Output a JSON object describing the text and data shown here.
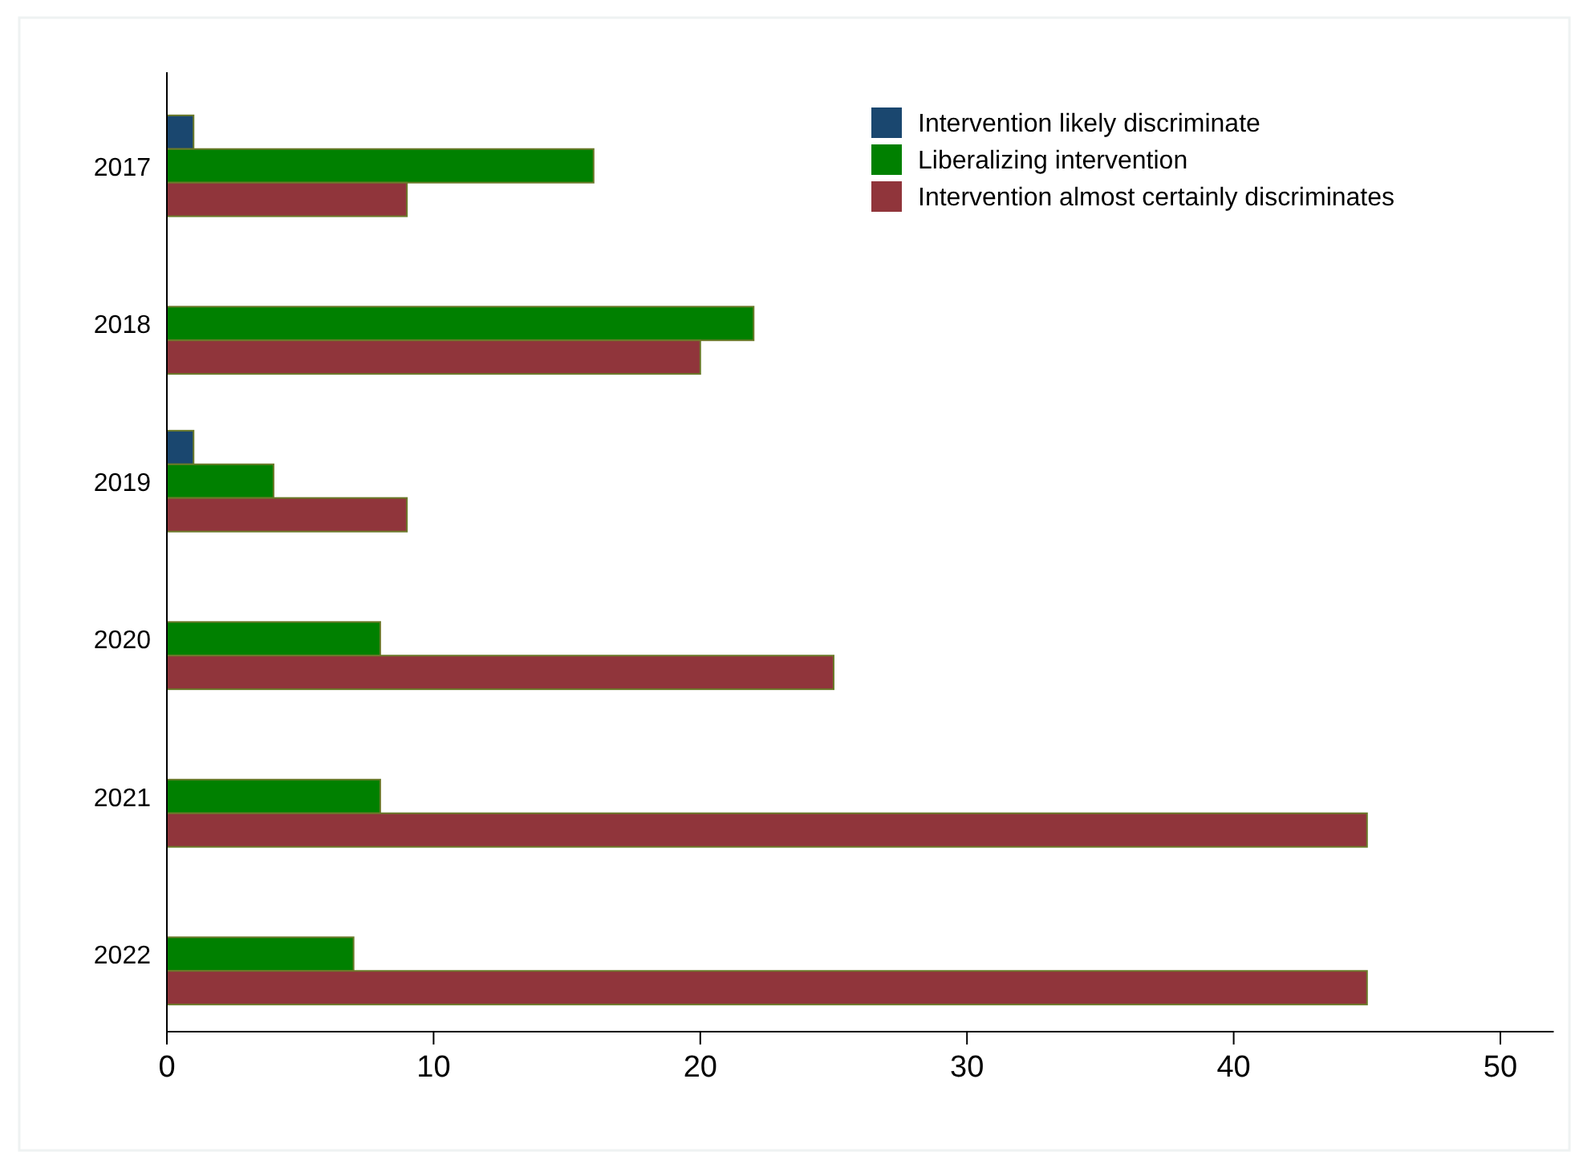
{
  "chart_data": {
    "type": "bar",
    "orientation": "horizontal",
    "categories": [
      "2017",
      "2018",
      "2019",
      "2020",
      "2021",
      "2022"
    ],
    "series": [
      {
        "name": "Intervention likely discriminate",
        "color": "#1a476f",
        "values": [
          1,
          null,
          1,
          null,
          null,
          null
        ]
      },
      {
        "name": "Liberalizing intervention",
        "color": "#008000",
        "values": [
          16,
          22,
          4,
          8,
          8,
          7
        ]
      },
      {
        "name": "Intervention almost certainly discriminates",
        "color": "#90353b",
        "values": [
          9,
          20,
          9,
          25,
          45,
          45
        ]
      }
    ],
    "xlim": [
      0,
      52
    ],
    "xticks": [
      0,
      10,
      20,
      30,
      40,
      50
    ],
    "grid": false,
    "legend": "top right"
  }
}
